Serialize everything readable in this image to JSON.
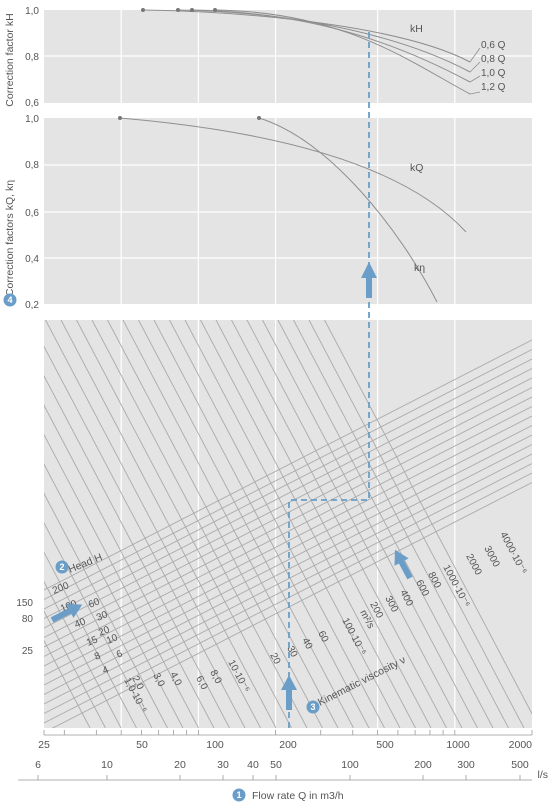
{
  "chart_data": [
    {
      "type": "line",
      "ylabel": "Correction factor kH",
      "ylim": [
        0.6,
        1.0
      ],
      "y_ticks": [
        "1,0",
        "0,8",
        "0,6"
      ],
      "curve_label": "kH",
      "series": [
        {
          "name": "0,6 Q"
        },
        {
          "name": "0,8 Q"
        },
        {
          "name": "1,0 Q"
        },
        {
          "name": "1,2 Q"
        }
      ]
    },
    {
      "type": "line",
      "ylabel": "Correction factors kQ, kη",
      "ylim": [
        0.2,
        1.0
      ],
      "y_ticks": [
        "1,0",
        "0,8",
        "0,6",
        "0,4",
        "0,2"
      ],
      "series": [
        {
          "name": "kQ"
        },
        {
          "name": "kη"
        }
      ]
    },
    {
      "type": "line",
      "title": "",
      "xlabel": "Flow rate Q in m3/h",
      "x_scale": "log",
      "xlim": [
        25,
        2000
      ],
      "x_ticks": [
        "25",
        "50",
        "100",
        "200",
        "500",
        "1000",
        "2000"
      ],
      "x2_unit": "l/s",
      "x2_ticks": [
        "6",
        "10",
        "20",
        "30",
        "40",
        "50",
        "100",
        "200",
        "300",
        "500"
      ],
      "y_ticks": [
        "150",
        "80",
        "25"
      ],
      "head_label": "Head H",
      "head_values": [
        "200",
        "100",
        "60",
        "40",
        "30",
        "20",
        "15",
        "10",
        "8",
        "6",
        "4"
      ],
      "viscosity_label": "Kinematic viscosity ν",
      "viscosity_unit": "m²/s",
      "viscosity_values": [
        "1,0·10⁻⁶",
        "2,0",
        "3,0",
        "4,0",
        "6,0",
        "8,0",
        "10·10⁻⁶",
        "20",
        "30",
        "40",
        "60",
        "100·10⁻⁶",
        "200",
        "300",
        "400",
        "600",
        "800",
        "1000·10⁻⁶",
        "2000",
        "3000",
        "4000·10⁻⁶"
      ]
    }
  ],
  "badges": [
    "1",
    "2",
    "3",
    "4"
  ]
}
